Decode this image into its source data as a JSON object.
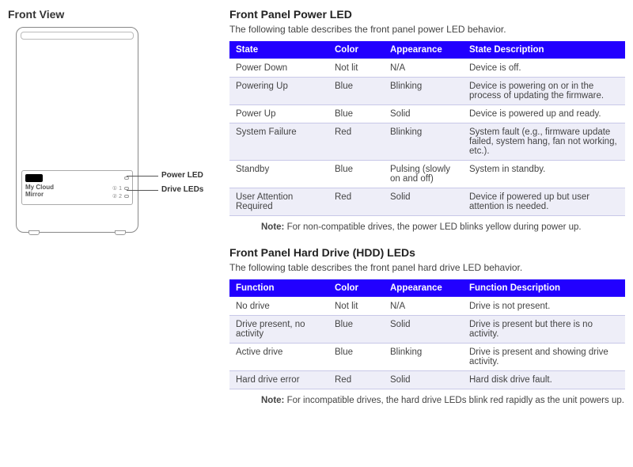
{
  "frontView": {
    "title": "Front View",
    "deviceLabel1": "My Cloud",
    "deviceLabel2": "Mirror",
    "drive1": "① 1",
    "drive2": "② 2",
    "calloutPower": "Power LED",
    "calloutDrives": "Drive LEDs"
  },
  "powerSection": {
    "title": "Front Panel Power LED",
    "desc": "The following table describes the front panel power LED behavior.",
    "headers": [
      "State",
      "Color",
      "Appearance",
      "State Description"
    ],
    "rows": [
      {
        "c0": "Power Down",
        "c1": "Not lit",
        "c2": "N/A",
        "c3": "Device is off."
      },
      {
        "c0": "Powering Up",
        "c1": "Blue",
        "c2": "Blinking",
        "c3": "Device is powering on or in the process of updating the firmware."
      },
      {
        "c0": "Power Up",
        "c1": "Blue",
        "c2": "Solid",
        "c3": "Device is powered up and ready."
      },
      {
        "c0": "System Failure",
        "c1": "Red",
        "c2": "Blinking",
        "c3": "System fault (e.g., firmware update failed, system hang, fan not working, etc.)."
      },
      {
        "c0": "Standby",
        "c1": "Blue",
        "c2": "Pulsing (slowly on and off)",
        "c3": " System in standby."
      },
      {
        "c0": "User Attention Required",
        "c1": "Red",
        "c2": "Solid",
        "c3": "Device if powered up but user attention is needed."
      }
    ],
    "noteLabel": "Note:",
    "noteText": "  For non-compatible drives, the power LED blinks yellow during power up."
  },
  "hddSection": {
    "title": "Front Panel Hard Drive (HDD) LEDs",
    "desc": "The following table describes the front panel hard drive LED behavior.",
    "headers": [
      "Function",
      "Color",
      "Appearance",
      "Function Description"
    ],
    "rows": [
      {
        "c0": "No drive",
        "c1": "Not lit",
        "c2": "N/A",
        "c3": "Drive is not present."
      },
      {
        "c0": "Drive present, no activity",
        "c1": "Blue",
        "c2": "Solid",
        "c3": "Drive is present but there is no activity."
      },
      {
        "c0": "Active drive",
        "c1": "Blue",
        "c2": "Blinking",
        "c3": "Drive is present and showing drive activity."
      },
      {
        "c0": "Hard drive error",
        "c1": "Red",
        "c2": "Solid",
        "c3": "Hard disk drive fault."
      }
    ],
    "noteLabel": "Note:",
    "noteText": "  For incompatible drives, the hard drive LEDs blink red rapidly as the unit powers up."
  },
  "colors": {
    "headerBg": "#2200ff",
    "altRowBg": "#eeeef8",
    "borderRow": "#c8c8e8"
  }
}
